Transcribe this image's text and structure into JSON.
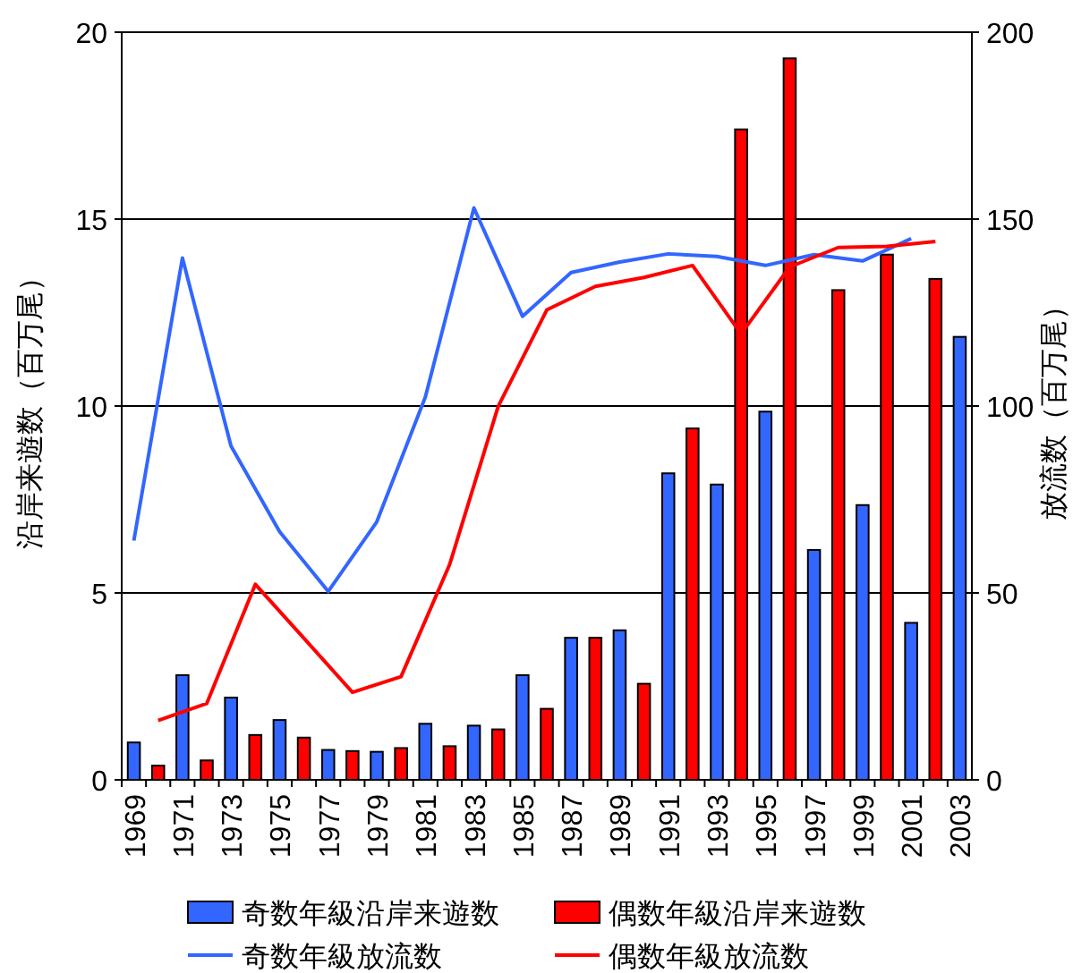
{
  "chart_data": {
    "type": "bar",
    "ylabel": "沿岸来遊数（百万尾）",
    "y2label": "放流数（百万尾）",
    "categories": [
      "1969",
      null,
      "1971",
      null,
      "1973",
      null,
      "1975",
      null,
      "1977",
      null,
      "1979",
      null,
      "1981",
      null,
      "1983",
      null,
      "1985",
      null,
      "1987",
      null,
      "1989",
      null,
      "1991",
      null,
      "1993",
      null,
      "1995",
      null,
      "1997",
      null,
      "1999",
      null,
      "2001",
      null,
      "2003"
    ],
    "ylim": [
      0,
      20
    ],
    "yticks": [
      0,
      5,
      10,
      15,
      20
    ],
    "y2lim": [
      0,
      200
    ],
    "y2ticks": [
      0,
      50,
      100,
      150,
      200
    ],
    "grid": "y",
    "legend": "bottom",
    "series": [
      {
        "name": "奇数年級沿岸来遊数",
        "color": "#3366ff",
        "values": [
          1.0,
          null,
          2.8,
          null,
          2.2,
          null,
          1.6,
          null,
          0.8,
          null,
          0.75,
          null,
          1.5,
          null,
          1.45,
          null,
          2.8,
          null,
          3.8,
          null,
          4.0,
          null,
          8.2,
          null,
          7.9,
          null,
          9.85,
          null,
          6.15,
          null,
          7.35,
          null,
          4.2,
          null,
          11.85
        ]
      },
      {
        "name": "偶数年級沿岸来遊数",
        "color": "#ff0000",
        "values": [
          null,
          0.38,
          null,
          0.52,
          null,
          1.2,
          null,
          1.13,
          null,
          0.77,
          null,
          0.85,
          null,
          0.9,
          null,
          1.35,
          null,
          1.9,
          null,
          3.8,
          null,
          2.57,
          null,
          9.4,
          null,
          17.4,
          null,
          19.3,
          null,
          13.1,
          null,
          14.05,
          null,
          13.4,
          null
        ]
      },
      {
        "name": "奇数年級放流数",
        "type": "line",
        "axis": "y2",
        "color": "#3366ff",
        "values": [
          64,
          null,
          139.6,
          null,
          89.3,
          null,
          66.4,
          null,
          50.4,
          null,
          69,
          null,
          102.4,
          null,
          153,
          null,
          124,
          null,
          135.7,
          null,
          138.5,
          null,
          140.7,
          null,
          140,
          null,
          137.6,
          null,
          140.5,
          null,
          138.8,
          null,
          144.8,
          null,
          null
        ]
      },
      {
        "name": "偶数年級放流数",
        "type": "line",
        "axis": "y2",
        "color": "#ff0000",
        "values": [
          null,
          15.9,
          null,
          20.4,
          null,
          52.3,
          null,
          37.9,
          null,
          23.4,
          null,
          27.6,
          null,
          57.6,
          null,
          99.9,
          null,
          125.7,
          null,
          132,
          null,
          134.4,
          null,
          137.6,
          null,
          119.3,
          null,
          137.2,
          null,
          142.4,
          null,
          142.7,
          null,
          144,
          null
        ]
      }
    ]
  }
}
